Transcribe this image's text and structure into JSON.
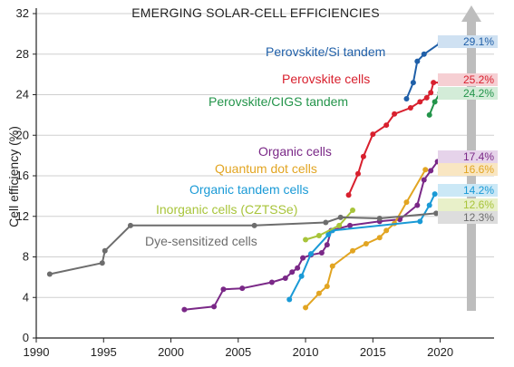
{
  "chart_data": {
    "type": "line",
    "title": "EMERGING SOLAR-CELL EFFICIENCIES",
    "xlabel": "",
    "ylabel": "Cell efficiency (%)",
    "xlim": [
      1990,
      2024
    ],
    "ylim": [
      0,
      32
    ],
    "xticks": [
      1990,
      1995,
      2000,
      2005,
      2010,
      2015,
      2020
    ],
    "yticks": [
      0,
      4,
      8,
      12,
      16,
      20,
      24,
      28,
      32
    ],
    "grid": "horizontal",
    "legend": "inline labels beside each series",
    "series": [
      {
        "name": "Perovskite/Si tandem",
        "color": "#1f5fa8",
        "badge_color": "#cfe1f2",
        "value_label": "29.1%",
        "points": [
          [
            2017.5,
            23.6
          ],
          [
            2018,
            25.2
          ],
          [
            2018.3,
            27.3
          ],
          [
            2018.8,
            28.0
          ],
          [
            2020,
            29.1
          ]
        ]
      },
      {
        "name": "Perovskite cells",
        "color": "#d8202e",
        "badge_color": "#f6cfd3",
        "value_label": "25.2%",
        "points": [
          [
            2013.2,
            14.1
          ],
          [
            2013.9,
            16.2
          ],
          [
            2014.3,
            17.9
          ],
          [
            2015,
            20.1
          ],
          [
            2016,
            21.0
          ],
          [
            2016.6,
            22.1
          ],
          [
            2017.8,
            22.7
          ],
          [
            2018.5,
            23.3
          ],
          [
            2019,
            23.7
          ],
          [
            2019.3,
            24.2
          ],
          [
            2019.5,
            25.2
          ],
          [
            2020,
            25.2
          ]
        ]
      },
      {
        "name": "Perovskite/CIGS tandem",
        "color": "#23944a",
        "badge_color": "#d3ecd8",
        "value_label": "24.2%",
        "points": [
          [
            2019.2,
            22.0
          ],
          [
            2019.6,
            23.3
          ],
          [
            2020,
            24.2
          ]
        ]
      },
      {
        "name": "Organic cells",
        "color": "#7a2887",
        "badge_color": "#e6d3ea",
        "value_label": "17.4%",
        "points": [
          [
            2001,
            2.8
          ],
          [
            2003.2,
            3.1
          ],
          [
            2003.9,
            4.8
          ],
          [
            2005.3,
            4.9
          ],
          [
            2007.5,
            5.5
          ],
          [
            2008.5,
            5.9
          ],
          [
            2009,
            6.5
          ],
          [
            2009.4,
            6.9
          ],
          [
            2009.8,
            7.9
          ],
          [
            2010.4,
            8.2
          ],
          [
            2011.2,
            8.4
          ],
          [
            2011.6,
            9.2
          ],
          [
            2011.9,
            10.6
          ],
          [
            2013.3,
            11.1
          ],
          [
            2015.5,
            11.5
          ],
          [
            2017,
            11.7
          ],
          [
            2018.3,
            13.1
          ],
          [
            2018.8,
            15.6
          ],
          [
            2019.3,
            16.5
          ],
          [
            2019.8,
            17.4
          ]
        ]
      },
      {
        "name": "Quantum dot cells",
        "color": "#e2a522",
        "badge_color": "#f9e6c2",
        "value_label": "16.6%",
        "points": [
          [
            2010,
            3.0
          ],
          [
            2011,
            4.4
          ],
          [
            2011.6,
            5.1
          ],
          [
            2012,
            7.1
          ],
          [
            2013.5,
            8.6
          ],
          [
            2014.5,
            9.3
          ],
          [
            2015.5,
            9.9
          ],
          [
            2016,
            10.6
          ],
          [
            2016.6,
            11.3
          ],
          [
            2017.5,
            13.4
          ],
          [
            2018.9,
            16.6
          ]
        ]
      },
      {
        "name": "Organic tandem cells",
        "color": "#1a9ad6",
        "badge_color": "#cbe8f6",
        "value_label": "14.2%",
        "points": [
          [
            2008.8,
            3.8
          ],
          [
            2009.7,
            6.1
          ],
          [
            2010.4,
            8.3
          ],
          [
            2011.7,
            10.2
          ],
          [
            2012,
            10.6
          ],
          [
            2018.5,
            11.5
          ],
          [
            2019.2,
            13.1
          ],
          [
            2019.6,
            14.2
          ]
        ]
      },
      {
        "name": "Inorganic cells (CZTSSe)",
        "color": "#a8c43a",
        "badge_color": "#e8f0c9",
        "value_label": "12.6%",
        "points": [
          [
            2010,
            9.7
          ],
          [
            2011,
            10.1
          ],
          [
            2012.5,
            11.1
          ],
          [
            2013.5,
            12.6
          ]
        ]
      },
      {
        "name": "Dye-sensitized cells",
        "color": "#6d6d6d",
        "badge_color": "#dddddd",
        "value_label": "12.3%",
        "points": [
          [
            1991,
            6.3
          ],
          [
            1994.9,
            7.4
          ],
          [
            1995.1,
            8.6
          ],
          [
            1997,
            11.1
          ],
          [
            2006.2,
            11.1
          ],
          [
            2011.5,
            11.4
          ],
          [
            2012.6,
            11.9
          ],
          [
            2015.5,
            11.8
          ],
          [
            2019.7,
            12.3
          ]
        ]
      }
    ]
  }
}
